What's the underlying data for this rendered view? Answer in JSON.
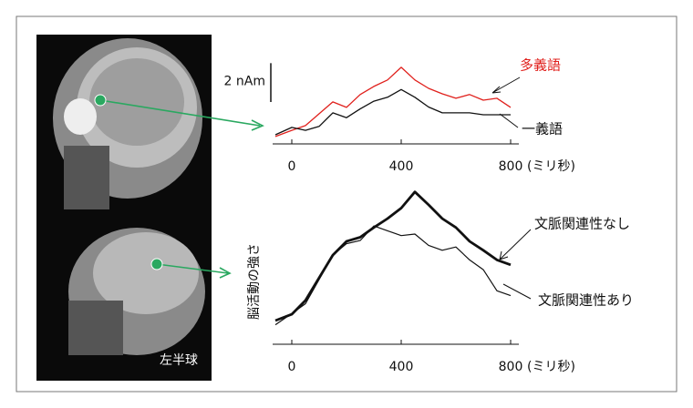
{
  "image_label": "左半球",
  "chart_data": [
    {
      "type": "line",
      "x_unit": "(ミリ秒)",
      "x": [
        -60,
        0,
        50,
        100,
        150,
        200,
        250,
        300,
        350,
        400,
        450,
        500,
        550,
        600,
        650,
        700,
        750,
        800
      ],
      "xlim": [
        -70,
        830
      ],
      "xticks": [
        0,
        400,
        800
      ],
      "ylim": [
        0,
        4.5
      ],
      "scale_bar": {
        "value": 2,
        "label": "2 nAm"
      },
      "series": [
        {
          "name": "多義語",
          "color": "#e0201c",
          "linewidth": 1.3,
          "values": [
            0.38,
            0.7,
            0.94,
            1.55,
            2.16,
            1.88,
            2.54,
            2.96,
            3.29,
            3.94,
            3.29,
            2.86,
            2.58,
            2.35,
            2.54,
            2.25,
            2.35,
            1.88
          ]
        },
        {
          "name": "一義語",
          "color": "#111111",
          "linewidth": 1.3,
          "values": [
            0.47,
            0.85,
            0.7,
            0.9,
            1.6,
            1.35,
            1.8,
            2.2,
            2.4,
            2.8,
            2.4,
            1.9,
            1.6,
            1.6,
            1.6,
            1.5,
            1.5,
            1.5
          ]
        }
      ]
    },
    {
      "type": "line",
      "x_unit": "(ミリ秒)",
      "ylabel": "脳活動の強さ",
      "x": [
        -60,
        0,
        50,
        100,
        150,
        200,
        250,
        300,
        350,
        400,
        450,
        500,
        550,
        600,
        650,
        700,
        750,
        800
      ],
      "xlim": [
        -70,
        830
      ],
      "xticks": [
        0,
        400,
        800
      ],
      "ylim": [
        0,
        10
      ],
      "series": [
        {
          "name": "文脈関連性なし",
          "color": "#111111",
          "linewidth": 2.8,
          "values": [
            1.46,
            1.85,
            2.7,
            4.1,
            5.5,
            6.35,
            6.6,
            7.2,
            7.75,
            8.4,
            9.4,
            8.6,
            7.75,
            7.2,
            6.35,
            5.8,
            5.2,
            4.9
          ]
        },
        {
          "name": "文脈関連性あり",
          "color": "#111111",
          "linewidth": 1.2,
          "values": [
            1.2,
            1.9,
            2.5,
            4.0,
            5.5,
            6.2,
            6.4,
            7.3,
            7.0,
            6.7,
            6.8,
            6.1,
            5.8,
            6.0,
            5.2,
            4.6,
            3.3,
            3.0
          ]
        }
      ]
    }
  ]
}
